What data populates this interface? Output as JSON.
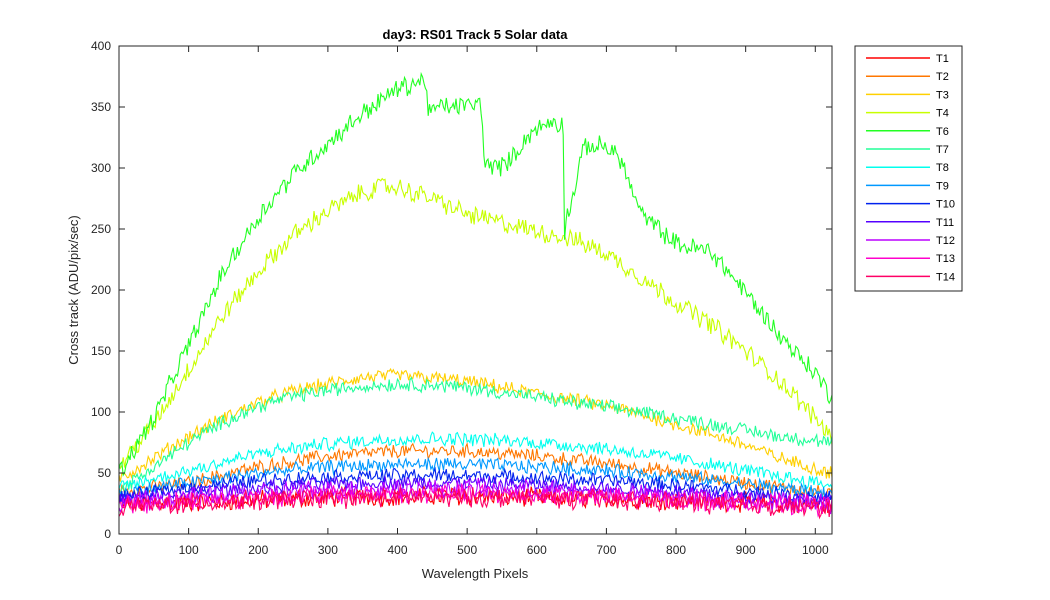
{
  "chart_data": {
    "type": "line",
    "title": "day3: RS01  Track 5 Solar data",
    "xlabel": "Wavelength Pixels",
    "ylabel": "Cross track (ADU/pix/sec)",
    "xlim": [
      0,
      1024
    ],
    "ylim": [
      0,
      400
    ],
    "xticks": [
      0,
      100,
      200,
      300,
      400,
      500,
      600,
      700,
      800,
      900,
      1000
    ],
    "yticks": [
      0,
      50,
      100,
      150,
      200,
      250,
      300,
      350,
      400
    ],
    "grid": false,
    "legend_position": "outside-right",
    "series": [
      {
        "name": "T1",
        "color": "#ff0000",
        "x": [
          0,
          100,
          200,
          300,
          400,
          500,
          600,
          700,
          800,
          900,
          1024
        ],
        "y": [
          24,
          26,
          28,
          30,
          31,
          31,
          30,
          29,
          28,
          26,
          23
        ]
      },
      {
        "name": "T2",
        "color": "#ff7700",
        "x": [
          0,
          100,
          200,
          300,
          400,
          500,
          600,
          700,
          800,
          900,
          1024
        ],
        "y": [
          35,
          42,
          55,
          64,
          68,
          68,
          64,
          58,
          50,
          42,
          33
        ]
      },
      {
        "name": "T3",
        "color": "#ffd000",
        "x": [
          0,
          50,
          100,
          150,
          200,
          250,
          300,
          350,
          400,
          450,
          500,
          550,
          600,
          650,
          700,
          750,
          800,
          850,
          900,
          950,
          1024
        ],
        "y": [
          45,
          62,
          80,
          95,
          108,
          117,
          123,
          128,
          130,
          128,
          125,
          120,
          115,
          110,
          105,
          98,
          90,
          82,
          73,
          62,
          50
        ]
      },
      {
        "name": "T4",
        "color": "#c8ff00",
        "x": [
          0,
          50,
          100,
          150,
          200,
          250,
          300,
          350,
          380,
          400,
          450,
          500,
          550,
          600,
          650,
          700,
          750,
          800,
          850,
          900,
          950,
          1000,
          1024
        ],
        "y": [
          55,
          90,
          135,
          180,
          215,
          245,
          265,
          280,
          285,
          284,
          275,
          262,
          255,
          248,
          242,
          230,
          210,
          190,
          172,
          150,
          125,
          95,
          80
        ]
      },
      {
        "name": "T6",
        "color": "#22ff22",
        "x": [
          0,
          50,
          100,
          150,
          200,
          250,
          300,
          350,
          400,
          440,
          445,
          460,
          520,
          525,
          540,
          560,
          590,
          620,
          638,
          640,
          642,
          650,
          660,
          670,
          700,
          720,
          730,
          750,
          800,
          820,
          850,
          900,
          950,
          1000,
          1024
        ],
        "y": [
          50,
          95,
          155,
          215,
          260,
          295,
          320,
          345,
          365,
          372,
          345,
          350,
          352,
          305,
          300,
          305,
          328,
          338,
          335,
          245,
          260,
          270,
          300,
          318,
          318,
          308,
          292,
          262,
          238,
          235,
          232,
          198,
          162,
          132,
          112
        ]
      },
      {
        "name": "T7",
        "color": "#22ff99",
        "x": [
          0,
          50,
          100,
          150,
          200,
          250,
          300,
          350,
          400,
          450,
          500,
          550,
          600,
          650,
          700,
          750,
          800,
          850,
          900,
          950,
          1024
        ],
        "y": [
          35,
          55,
          75,
          92,
          105,
          113,
          118,
          121,
          123,
          122,
          120,
          116,
          112,
          108,
          104,
          100,
          95,
          90,
          85,
          80,
          75
        ]
      },
      {
        "name": "T8",
        "color": "#00ffee",
        "x": [
          0,
          100,
          200,
          300,
          400,
          500,
          600,
          700,
          800,
          900,
          1024
        ],
        "y": [
          38,
          52,
          66,
          74,
          78,
          78,
          75,
          70,
          62,
          52,
          40
        ]
      },
      {
        "name": "T9",
        "color": "#0099ff",
        "x": [
          0,
          100,
          200,
          300,
          400,
          500,
          600,
          700,
          800,
          900,
          1024
        ],
        "y": [
          33,
          42,
          50,
          55,
          57,
          57,
          55,
          52,
          47,
          41,
          33
        ]
      },
      {
        "name": "T10",
        "color": "#0022ee",
        "x": [
          0,
          100,
          200,
          300,
          400,
          500,
          600,
          700,
          800,
          900,
          1024
        ],
        "y": [
          30,
          38,
          44,
          47,
          48,
          48,
          46,
          44,
          40,
          35,
          30
        ]
      },
      {
        "name": "T11",
        "color": "#5500ff",
        "x": [
          0,
          100,
          200,
          300,
          400,
          500,
          600,
          700,
          800,
          900,
          1024
        ],
        "y": [
          28,
          34,
          38,
          41,
          42,
          42,
          40,
          38,
          35,
          31,
          27
        ]
      },
      {
        "name": "T12",
        "color": "#bb00ff",
        "x": [
          0,
          100,
          200,
          300,
          400,
          500,
          600,
          700,
          800,
          900,
          1024
        ],
        "y": [
          26,
          30,
          34,
          36,
          37,
          37,
          36,
          34,
          31,
          28,
          25
        ]
      },
      {
        "name": "T13",
        "color": "#ff00cc",
        "x": [
          0,
          100,
          200,
          300,
          400,
          500,
          600,
          700,
          800,
          900,
          1024
        ],
        "y": [
          24,
          27,
          30,
          32,
          33,
          33,
          32,
          30,
          28,
          26,
          23
        ]
      },
      {
        "name": "T14",
        "color": "#ff0066",
        "x": [
          0,
          100,
          200,
          300,
          400,
          500,
          600,
          700,
          800,
          900,
          1024
        ],
        "y": [
          22,
          25,
          27,
          29,
          30,
          30,
          29,
          28,
          26,
          24,
          21
        ]
      }
    ]
  }
}
